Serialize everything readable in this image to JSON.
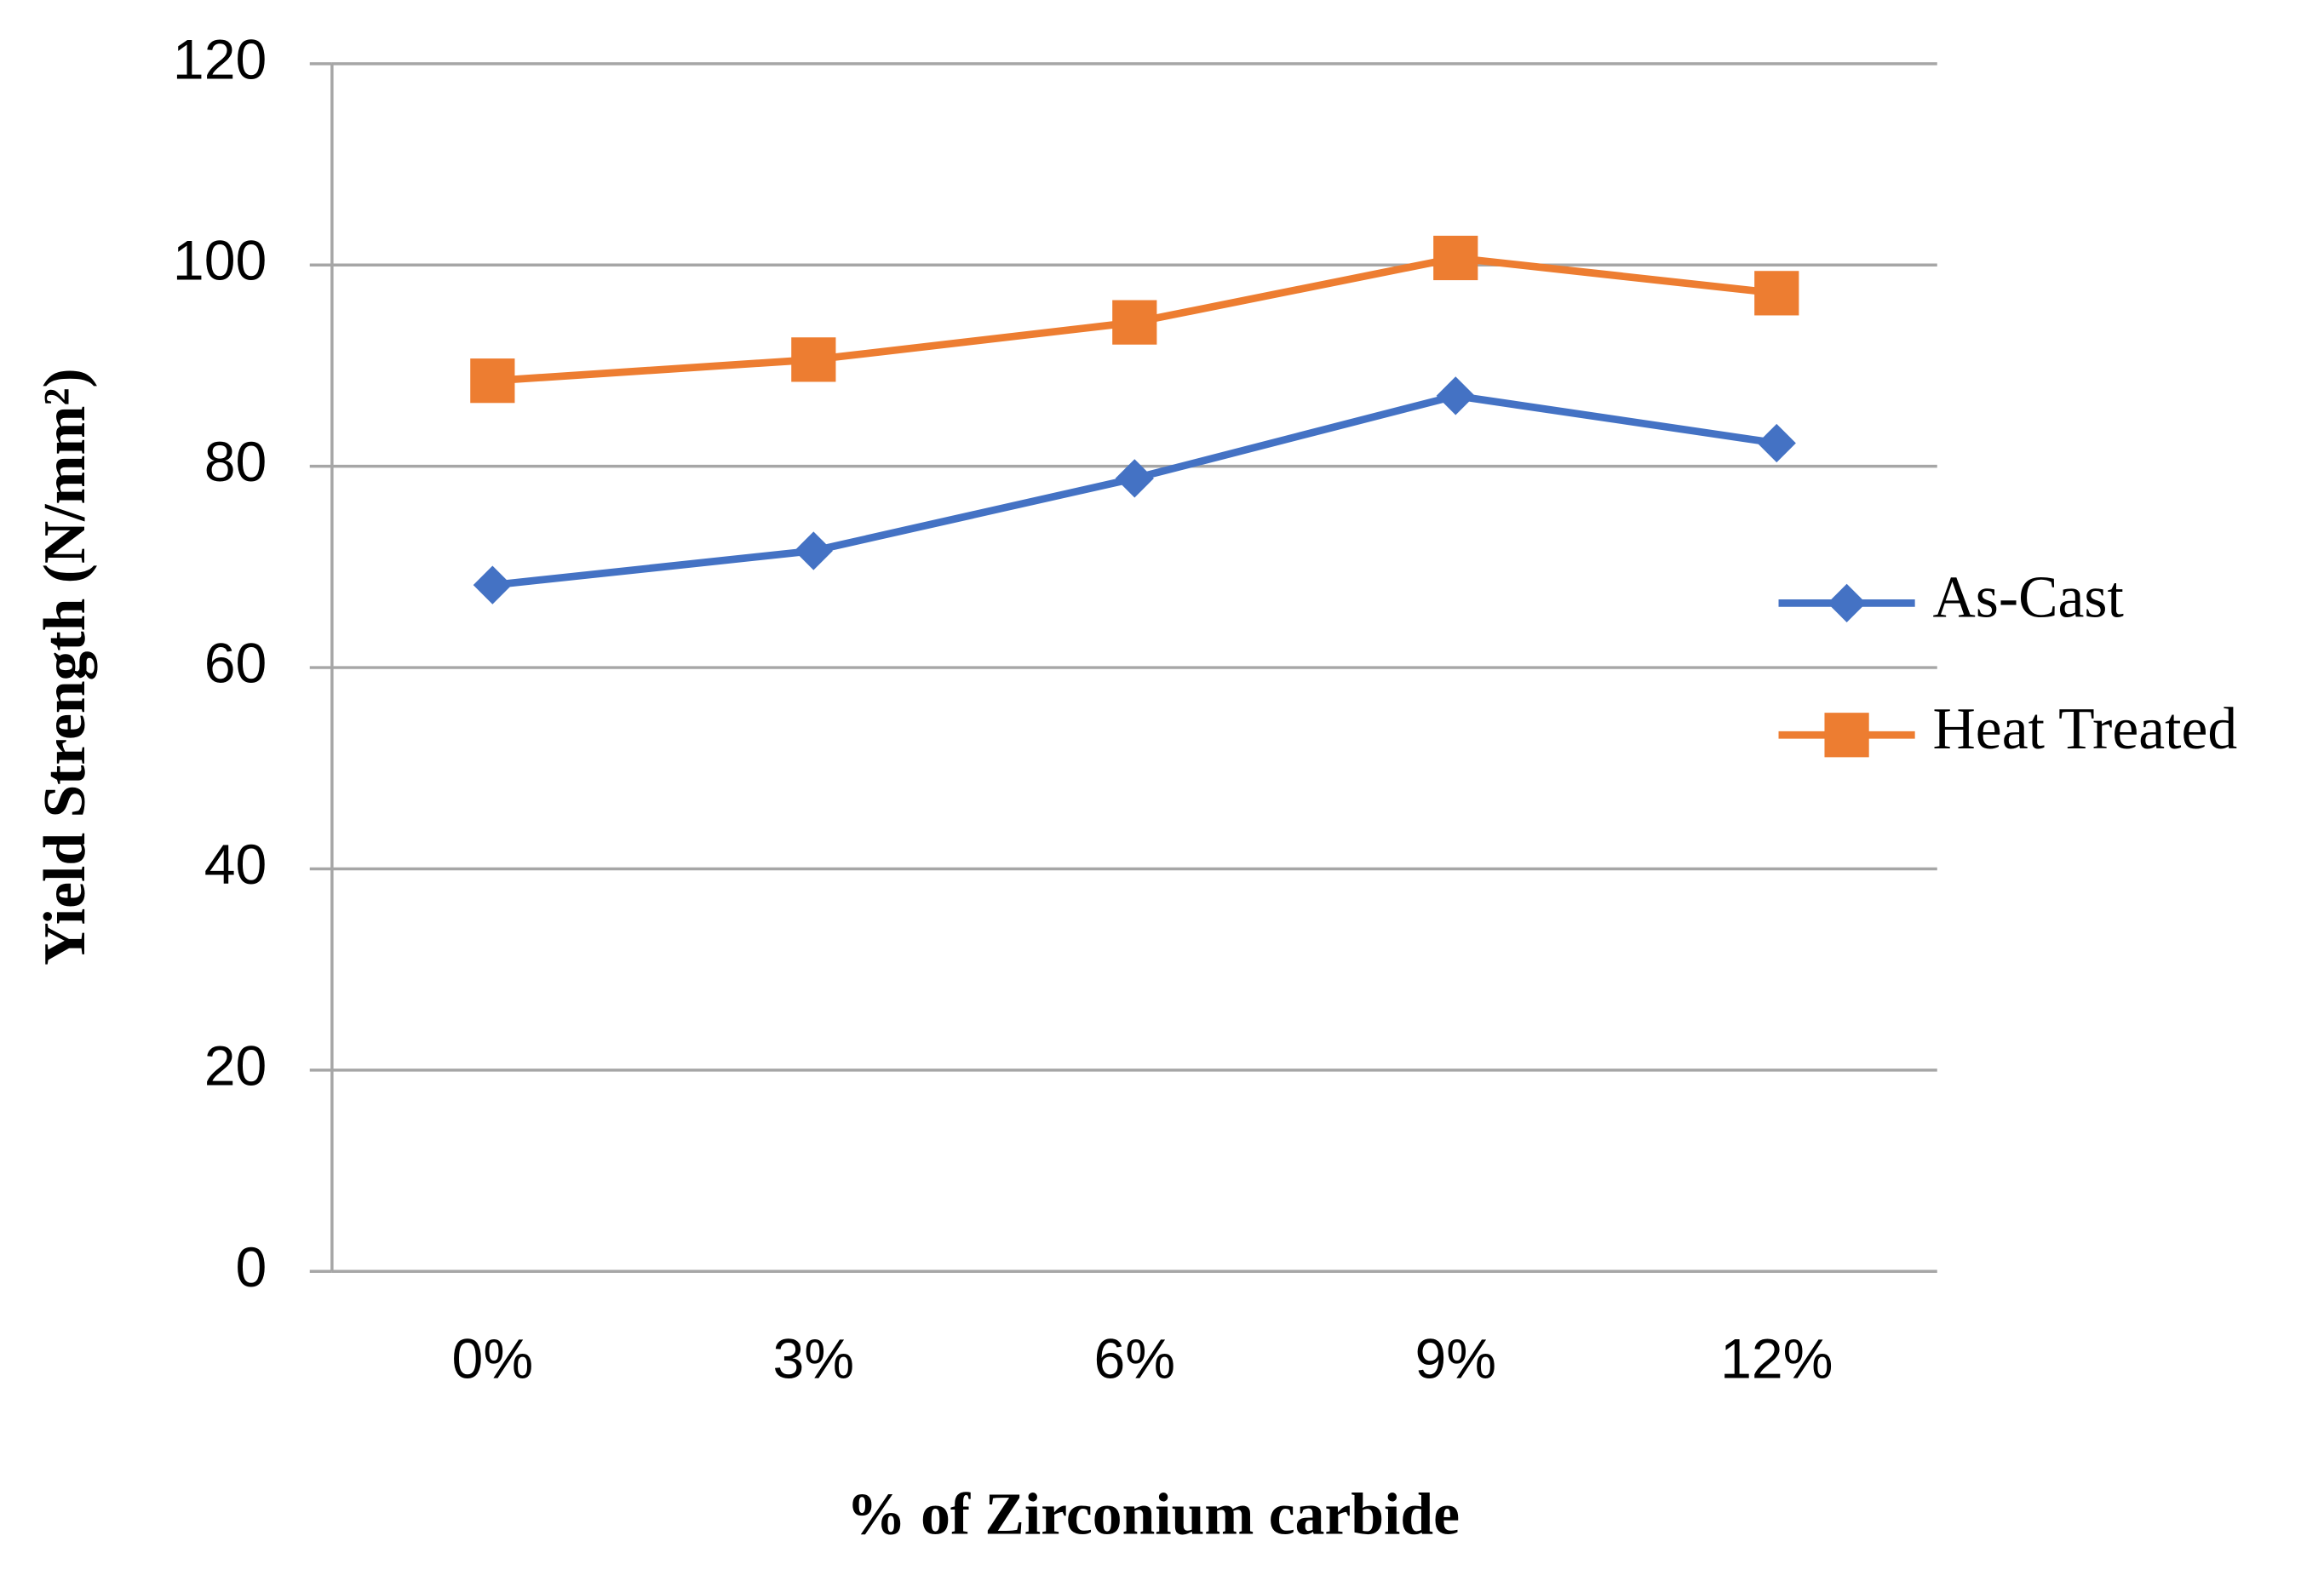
{
  "chart_data": {
    "type": "line",
    "categories": [
      "0%",
      "3%",
      "6%",
      "9%",
      "12%"
    ],
    "series": [
      {
        "name": "As-Cast",
        "color": "#4472c4",
        "marker": "diamond",
        "values": [
          68.2,
          71.6,
          78.8,
          87.0,
          82.3
        ]
      },
      {
        "name": "Heat Treated",
        "color": "#ed7d31",
        "marker": "square",
        "values": [
          88.5,
          90.6,
          94.3,
          100.7,
          97.2
        ]
      }
    ],
    "x_label": "% of Zirconium carbide",
    "y_label": "Yield Strength  (N/mm²)",
    "ylim": [
      0,
      120
    ],
    "yticks": [
      0,
      20,
      40,
      60,
      80,
      100,
      120
    ],
    "grid": true,
    "legend": "right"
  }
}
